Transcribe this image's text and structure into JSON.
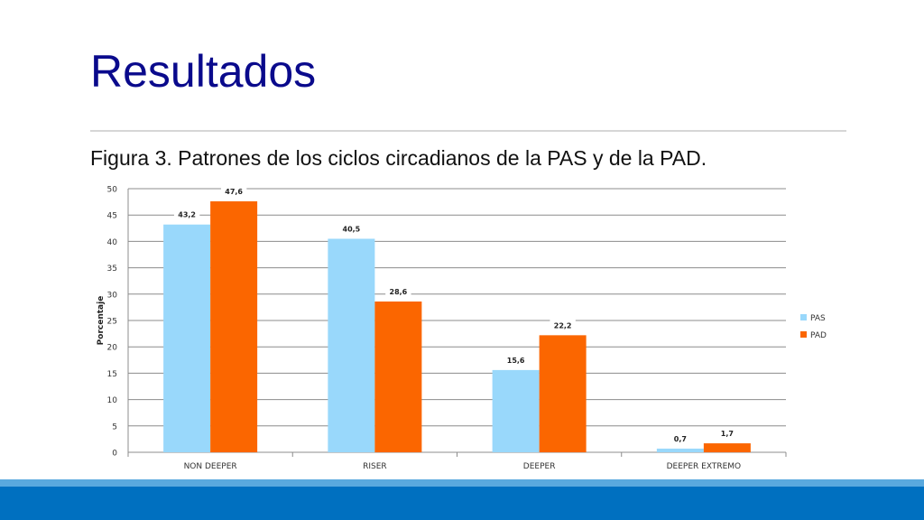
{
  "slide": {
    "title": "Resultados",
    "caption": "Figura 3. Patrones de los ciclos circadianos de la PAS y de la PAD."
  },
  "colors": {
    "title": "#0a0a8c",
    "pas": "#99d8fb",
    "pad": "#fb6600",
    "grid": "#8c8c8c",
    "footer": "#0070c0",
    "footer_accent": "#5aa9de"
  },
  "chart_data": {
    "type": "bar",
    "title": "",
    "xlabel": "",
    "ylabel": "Porcentaje",
    "ylim": [
      0,
      50
    ],
    "yticks": [
      0,
      5,
      10,
      15,
      20,
      25,
      30,
      35,
      40,
      45,
      50
    ],
    "grid": true,
    "legend_position": "right",
    "categories": [
      "NON DEEPER",
      "RISER",
      "DEEPER",
      "DEEPER EXTREMO"
    ],
    "series": [
      {
        "name": "PAS",
        "values": [
          43.2,
          40.5,
          15.6,
          0.7
        ],
        "labels": [
          "43,2",
          "40,5",
          "15,6",
          "0,7"
        ]
      },
      {
        "name": "PAD",
        "values": [
          47.6,
          28.6,
          22.2,
          1.7
        ],
        "labels": [
          "47,6",
          "28,6",
          "22,2",
          "1,7"
        ]
      }
    ]
  }
}
